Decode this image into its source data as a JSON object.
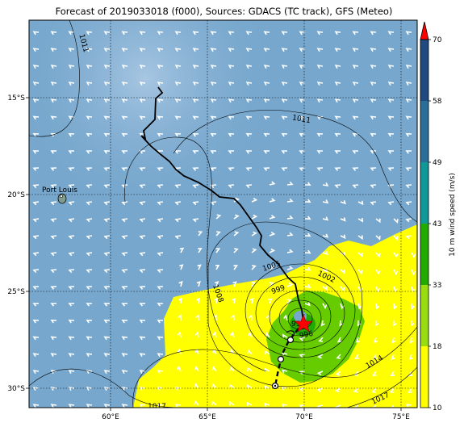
{
  "title": "Forecast of 2019033018 (f000), Sources: GDACS (TC track), GFS (Meteo)",
  "map": {
    "lon_range": [
      56,
      76
    ],
    "lat_range": [
      -31,
      -11
    ],
    "lon_ticks": [
      "60°E",
      "65°E",
      "70°E",
      "75°E"
    ],
    "lat_ticks": [
      "15°S",
      "20°S",
      "25°S",
      "30°S"
    ],
    "place_label": "Port Louis",
    "isobar_labels": [
      "1011",
      "1011",
      "1005",
      "1002",
      "999",
      "996",
      "99",
      "1008",
      "1014",
      "1017",
      "1017"
    ],
    "storm_marker": "star-icon",
    "colors": {
      "ocean": "#77a7cd",
      "band18": "#ffff00",
      "band33": "#66cc00",
      "track": "#000000",
      "storm": "#ff0000"
    }
  },
  "colorbar": {
    "label": "10 m wind speed (m/s)",
    "ticks": [
      "10",
      "18",
      "33",
      "43",
      "49",
      "58",
      "70"
    ],
    "colors": [
      "#ffff00",
      "#99dd11",
      "#22aa00",
      "#119999",
      "#2a6f99",
      "#204a80",
      "#1f2f70"
    ],
    "extend_color": "#ff0000"
  }
}
